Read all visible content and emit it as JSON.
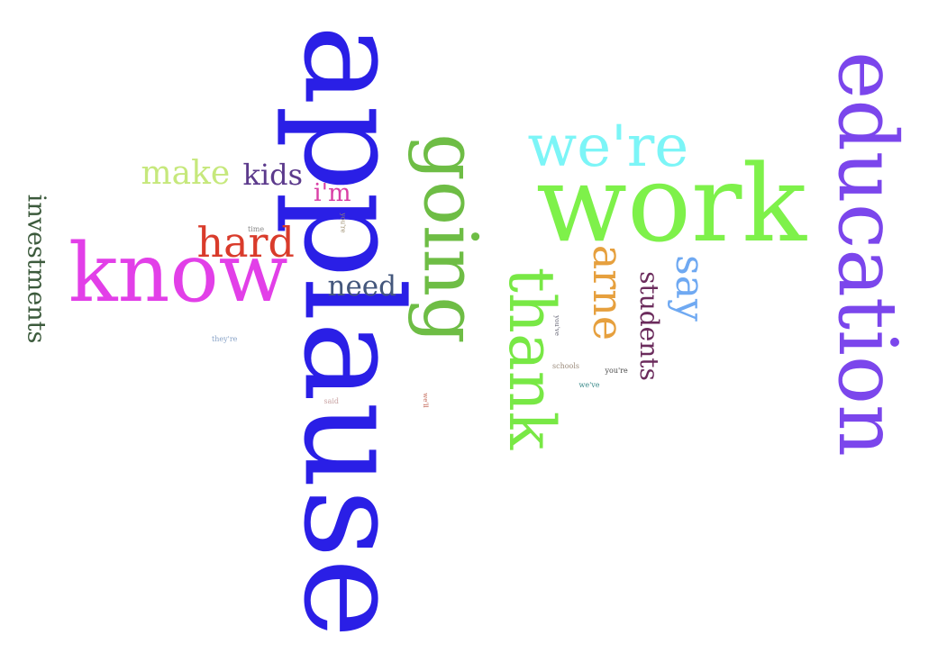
{
  "words": [
    {
      "id": "applause",
      "text": "applause",
      "color": "#2a1fe6",
      "rotated": true
    },
    {
      "id": "work",
      "text": "work",
      "color": "#7ef14a",
      "rotated": false
    },
    {
      "id": "education",
      "text": "education",
      "color": "#7b46ec",
      "rotated": true
    },
    {
      "id": "know",
      "text": "know",
      "color": "#e23fe8",
      "rotated": false
    },
    {
      "id": "going",
      "text": "going",
      "color": "#6ebd45",
      "rotated": true
    },
    {
      "id": "thank",
      "text": "thank",
      "color": "#78e845",
      "rotated": true
    },
    {
      "id": "were",
      "text": "we're",
      "color": "#7cf5f7",
      "rotated": false
    },
    {
      "id": "arne",
      "text": "arne",
      "color": "#e6a03e",
      "rotated": true
    },
    {
      "id": "hard",
      "text": "hard",
      "color": "#d93b2b",
      "rotated": false
    },
    {
      "id": "say",
      "text": "say",
      "color": "#6fa9f2",
      "rotated": true
    },
    {
      "id": "students",
      "text": "students",
      "color": "#6b2b5c",
      "rotated": true
    },
    {
      "id": "investments",
      "text": "investments",
      "color": "#3c5a3c",
      "rotated": true
    },
    {
      "id": "make",
      "text": "make",
      "color": "#c6e87c",
      "rotated": false
    },
    {
      "id": "kids",
      "text": "kids",
      "color": "#5c3a8c",
      "rotated": false
    },
    {
      "id": "need",
      "text": "need",
      "color": "#44577c",
      "rotated": false
    },
    {
      "id": "im",
      "text": "i'm",
      "color": "#d93fa6",
      "rotated": false
    },
    {
      "id": "time",
      "text": "time",
      "color": "#8a8a8a",
      "rotated": false
    },
    {
      "id": "youre-a",
      "text": "you're",
      "color": "#9a8a6a",
      "rotated": true
    },
    {
      "id": "theyre",
      "text": "they're",
      "color": "#8aa4c8",
      "rotated": false
    },
    {
      "id": "said",
      "text": "said",
      "color": "#c8a2a2",
      "rotated": false
    },
    {
      "id": "well",
      "text": "we'll",
      "color": "#c46a5a",
      "rotated": true
    },
    {
      "id": "youve",
      "text": "you've",
      "color": "#6a6a7a",
      "rotated": true
    },
    {
      "id": "schools",
      "text": "schools",
      "color": "#9a8a7a",
      "rotated": false
    },
    {
      "id": "youre-b",
      "text": "you're",
      "color": "#4a4a4a",
      "rotated": false
    },
    {
      "id": "weve",
      "text": "we've",
      "color": "#3a8a8a",
      "rotated": false
    }
  ]
}
